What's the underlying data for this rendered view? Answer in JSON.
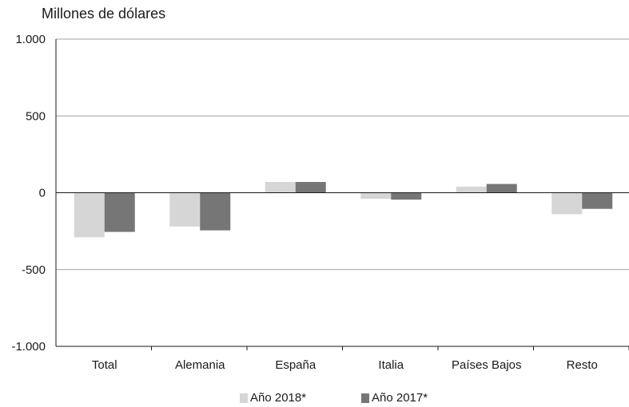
{
  "chart_data": {
    "type": "bar",
    "ylabel": "Millones de dólares",
    "ylim": [
      -1000,
      1000
    ],
    "yticks": [
      1000,
      500,
      0,
      -500,
      -1000
    ],
    "ytick_labels": [
      "1.000",
      "500",
      "0",
      "-500",
      "-1.000"
    ],
    "categories": [
      "Total",
      "Alemania",
      "España",
      "Italia",
      "Países Bajos",
      "Resto"
    ],
    "series": [
      {
        "name": "Año 2018*",
        "color": "#d6d6d6",
        "values": [
          -290,
          -220,
          70,
          -40,
          40,
          -140
        ]
      },
      {
        "name": "Año 2017*",
        "color": "#767676",
        "values": [
          -255,
          -245,
          70,
          -45,
          57,
          -105
        ]
      }
    ],
    "grid": true,
    "legend_position": "bottom"
  }
}
